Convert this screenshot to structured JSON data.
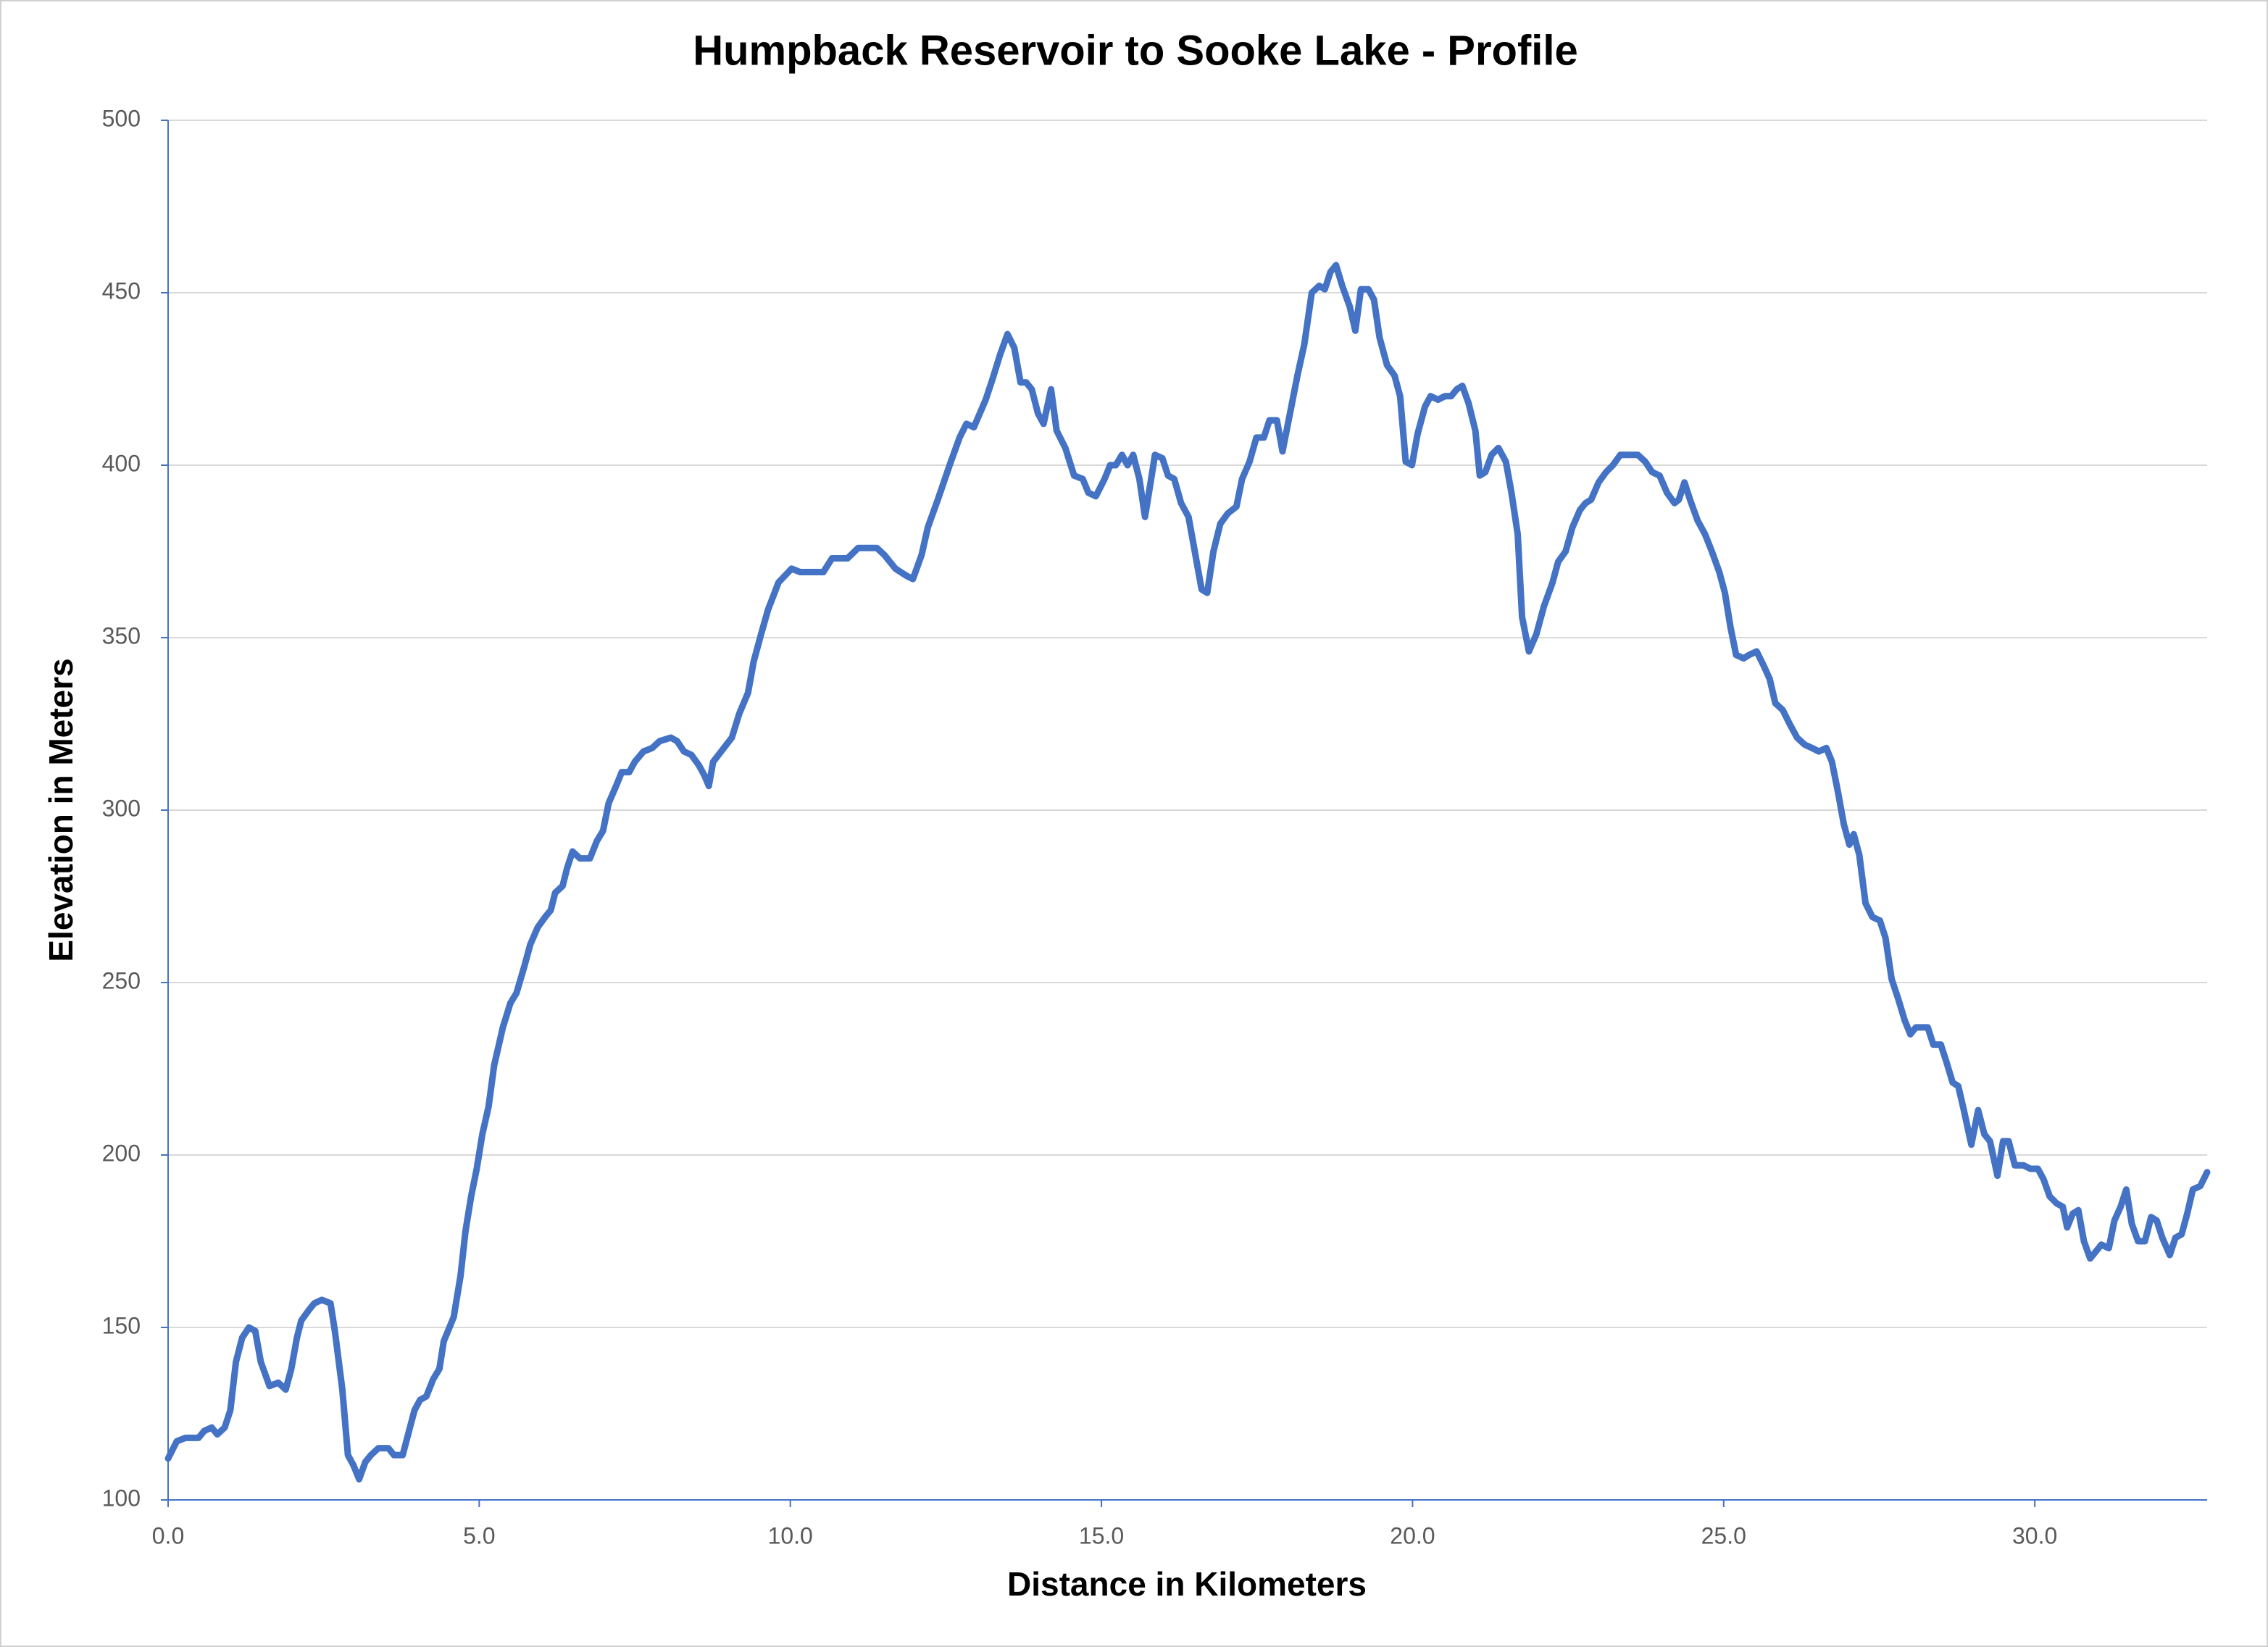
{
  "chart_data": {
    "type": "line",
    "title": "Humpback Reservoir to Sooke Lake - Profile",
    "x_label": "Distance in Kilometers",
    "y_label": "Elevation in Meters",
    "xlim": [
      0,
      32.77
    ],
    "ylim": [
      100,
      500
    ],
    "xticks": [
      {
        "value": 0,
        "label": "0.0"
      },
      {
        "value": 5,
        "label": "5.0"
      },
      {
        "value": 10,
        "label": "10.0"
      },
      {
        "value": 15,
        "label": "15.0"
      },
      {
        "value": 20,
        "label": "20.0"
      },
      {
        "value": 25,
        "label": "25.0"
      },
      {
        "value": 30,
        "label": "30.0"
      }
    ],
    "yticks": [
      100,
      150,
      200,
      250,
      300,
      350,
      400,
      450,
      500
    ],
    "grid": true,
    "color": "#4472c4",
    "x": [
      0,
      0.14,
      0.28,
      0.49,
      0.58,
      0.7,
      0.79,
      0.91,
      1.0,
      1.09,
      1.19,
      1.3,
      1.4,
      1.49,
      1.63,
      1.77,
      1.89,
      1.98,
      2.07,
      2.14,
      2.26,
      2.35,
      2.47,
      2.61,
      2.68,
      2.8,
      2.89,
      2.98,
      3.07,
      3.17,
      3.26,
      3.38,
      3.54,
      3.63,
      3.77,
      3.96,
      4.05,
      4.15,
      4.26,
      4.36,
      4.43,
      4.59,
      4.7,
      4.78,
      4.87,
      4.96,
      5.05,
      5.15,
      5.24,
      5.38,
      5.5,
      5.6,
      5.73,
      5.82,
      5.94,
      6.06,
      6.15,
      6.22,
      6.34,
      6.41,
      6.5,
      6.62,
      6.78,
      6.89,
      6.99,
      7.08,
      7.2,
      7.29,
      7.41,
      7.5,
      7.64,
      7.78,
      7.9,
      8.08,
      8.18,
      8.29,
      8.41,
      8.53,
      8.62,
      8.69,
      8.76,
      9.06,
      9.18,
      9.32,
      9.41,
      9.53,
      9.64,
      9.81,
      10.02,
      10.16,
      10.39,
      10.53,
      10.67,
      10.92,
      11.09,
      11.23,
      11.39,
      11.51,
      11.69,
      11.86,
      11.97,
      12.11,
      12.21,
      12.37,
      12.56,
      12.72,
      12.83,
      12.95,
      13.14,
      13.25,
      13.37,
      13.49,
      13.6,
      13.7,
      13.79,
      13.88,
      13.98,
      14.07,
      14.19,
      14.28,
      14.42,
      14.56,
      14.7,
      14.79,
      14.91,
      15.05,
      15.14,
      15.23,
      15.33,
      15.42,
      15.51,
      15.61,
      15.7,
      15.79,
      15.86,
      15.98,
      16.07,
      16.17,
      16.28,
      16.4,
      16.52,
      16.61,
      16.7,
      16.8,
      16.91,
      17.03,
      17.17,
      17.26,
      17.38,
      17.49,
      17.61,
      17.7,
      17.82,
      17.91,
      18.03,
      18.15,
      18.26,
      18.38,
      18.5,
      18.59,
      18.68,
      18.77,
      18.87,
      18.99,
      19.08,
      19.17,
      19.29,
      19.38,
      19.47,
      19.59,
      19.71,
      19.8,
      19.89,
      19.99,
      20.08,
      20.2,
      20.29,
      20.41,
      20.52,
      20.62,
      20.71,
      20.8,
      20.9,
      21.01,
      21.08,
      21.17,
      21.27,
      21.38,
      21.5,
      21.59,
      21.69,
      21.76,
      21.87,
      21.99,
      22.11,
      22.25,
      22.34,
      22.46,
      22.57,
      22.69,
      22.78,
      22.87,
      22.99,
      23.11,
      23.22,
      23.34,
      23.48,
      23.62,
      23.74,
      23.85,
      23.97,
      24.09,
      24.21,
      24.28,
      24.37,
      24.46,
      24.58,
      24.7,
      24.81,
      24.93,
      25.02,
      25.11,
      25.2,
      25.32,
      25.41,
      25.53,
      25.64,
      25.74,
      25.83,
      25.95,
      26.06,
      26.18,
      26.3,
      26.42,
      26.53,
      26.65,
      26.74,
      26.84,
      26.93,
      27.02,
      27.09,
      27.18,
      27.28,
      27.39,
      27.51,
      27.6,
      27.7,
      27.81,
      27.91,
      28.0,
      28.09,
      28.19,
      28.28,
      28.37,
      28.49,
      28.58,
      28.68,
      28.77,
      28.86,
      28.98,
      29.09,
      29.19,
      29.28,
      29.4,
      29.49,
      29.58,
      29.68,
      29.82,
      29.93,
      30.05,
      30.14,
      30.24,
      30.35,
      30.45,
      30.52,
      30.61,
      30.7,
      30.79,
      30.89,
      30.98,
      31.07,
      31.19,
      31.28,
      31.38,
      31.47,
      31.56,
      31.66,
      31.77,
      31.87,
      31.96,
      32.05,
      32.17,
      32.26,
      32.36,
      32.45,
      32.54,
      32.66,
      32.77
    ],
    "values": [
      112,
      117,
      118,
      118,
      120,
      121,
      119,
      121,
      126,
      140,
      147,
      150,
      149,
      140,
      133,
      134,
      132,
      138,
      147,
      152,
      155,
      157,
      158,
      157,
      149,
      132,
      113,
      110,
      106,
      111,
      113,
      115,
      115,
      113,
      113,
      126,
      129,
      130,
      135,
      138,
      146,
      153,
      165,
      178,
      188,
      196,
      206,
      214,
      226,
      237,
      244,
      247,
      255,
      261,
      266,
      269,
      271,
      276,
      278,
      283,
      288,
      286,
      286,
      291,
      294,
      302,
      307,
      311,
      311,
      314,
      317,
      318,
      320,
      321,
      320,
      317,
      316,
      313,
      310,
      307,
      314,
      321,
      328,
      334,
      343,
      351,
      358,
      366,
      370,
      369,
      369,
      369,
      373,
      373,
      376,
      376,
      376,
      374,
      370,
      368,
      367,
      374,
      382,
      390,
      400,
      408,
      412,
      411,
      419,
      425,
      432,
      438,
      434,
      424,
      424,
      422,
      415,
      412,
      422,
      410,
      405,
      397,
      396,
      392,
      391,
      396,
      400,
      400,
      403,
      400,
      403,
      396,
      385,
      395,
      403,
      402,
      397,
      396,
      389,
      385,
      373,
      364,
      363,
      375,
      383,
      386,
      388,
      396,
      401,
      408,
      408,
      413,
      413,
      404,
      415,
      426,
      435,
      450,
      452,
      451,
      456,
      458,
      452,
      446,
      439,
      451,
      451,
      448,
      437,
      429,
      426,
      420,
      401,
      400,
      409,
      417,
      420,
      419,
      420,
      420,
      422,
      423,
      418,
      410,
      397,
      398,
      403,
      405,
      401,
      392,
      380,
      356,
      346,
      351,
      359,
      366,
      372,
      375,
      382,
      387,
      389,
      390,
      395,
      398,
      400,
      403,
      403,
      403,
      401,
      398,
      397,
      392,
      389,
      390,
      395,
      390,
      384,
      380,
      375,
      369,
      363,
      353,
      345,
      344,
      345,
      346,
      342,
      338,
      331,
      329,
      325,
      321,
      319,
      318,
      317,
      318,
      314,
      305,
      296,
      290,
      293,
      287,
      273,
      269,
      268,
      263,
      251,
      245,
      239,
      235,
      237,
      237,
      237,
      232,
      232,
      227,
      221,
      220,
      213,
      203,
      213,
      206,
      204,
      194,
      204,
      204,
      197,
      197,
      196,
      196,
      193,
      188,
      186,
      185,
      179,
      183,
      184,
      175,
      170,
      172,
      174,
      173,
      181,
      185,
      190,
      180,
      175,
      175,
      182,
      181,
      176,
      171,
      176,
      177,
      183,
      190,
      191,
      195
    ]
  }
}
